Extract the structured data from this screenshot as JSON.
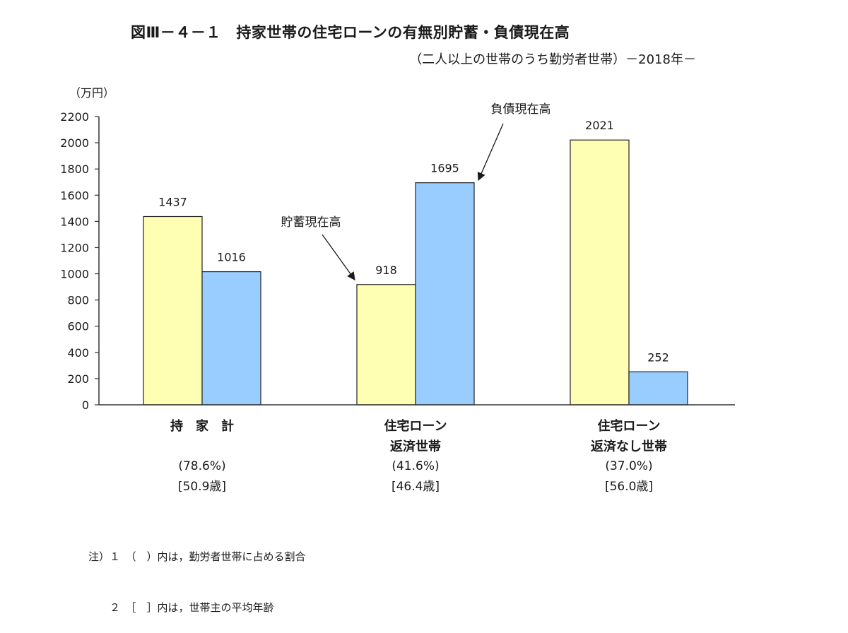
{
  "chart_data": {
    "type": "bar",
    "title": "図Ⅲ－４－１　持家世帯の住宅ローンの有無別貯蓄・負債現在高",
    "subtitle": "（二人以上の世帯のうち勤労者世帯）－2018年－",
    "ylabel": "（万円）",
    "ylim": [
      0,
      2200
    ],
    "yticks": [
      0,
      200,
      400,
      600,
      800,
      1000,
      1200,
      1400,
      1600,
      1800,
      2000,
      2200
    ],
    "categories": [
      {
        "lines": [
          "持　家　計"
        ],
        "share": "(78.6%)",
        "age": "[50.9歳]"
      },
      {
        "lines": [
          "住宅ローン",
          "返済世帯"
        ],
        "share": "(41.6%)",
        "age": "[46.4歳]"
      },
      {
        "lines": [
          "住宅ローン",
          "返済なし世帯"
        ],
        "share": "(37.0%)",
        "age": "[56.0歳]"
      }
    ],
    "series": [
      {
        "name": "貯蓄現在高",
        "color": "#ffffb3",
        "values": [
          1437,
          918,
          2021
        ]
      },
      {
        "name": "負債現在高",
        "color": "#99ccff",
        "values": [
          1016,
          1695,
          252
        ]
      }
    ],
    "grid": false,
    "legend": "none"
  },
  "notes": [
    "注）１　（　）内は，勤労者世帯に占める割合",
    "　　２　［　］内は，世帯主の平均年齢"
  ]
}
